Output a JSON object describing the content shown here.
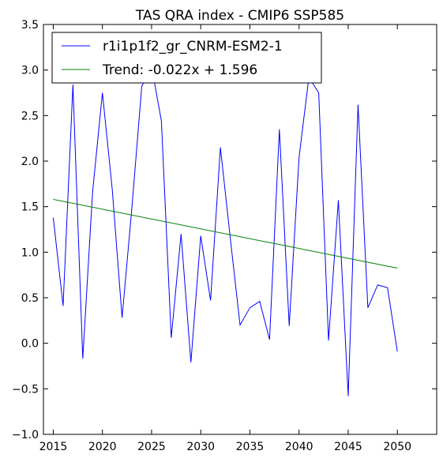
{
  "chart_data": {
    "type": "line",
    "title": "TAS QRA index - CMIP6 SSP585",
    "xlabel": "",
    "ylabel": "",
    "xlim": [
      2014,
      2054
    ],
    "ylim": [
      -1.0,
      3.5
    ],
    "xticks": [
      2015,
      2020,
      2025,
      2030,
      2035,
      2040,
      2045,
      2050
    ],
    "xtick_labels": [
      "2015",
      "2020",
      "2025",
      "2030",
      "2035",
      "2040",
      "2045",
      "2050"
    ],
    "yticks": [
      -1.0,
      -0.5,
      0.0,
      0.5,
      1.0,
      1.5,
      2.0,
      2.5,
      3.0,
      3.5
    ],
    "ytick_labels": [
      "−1.0",
      "−0.5",
      "0.0",
      "0.5",
      "1.0",
      "1.5",
      "2.0",
      "2.5",
      "3.0",
      "3.5"
    ],
    "grid": false,
    "legend_position": "top-left",
    "series": [
      {
        "name": "r1i1p1f2_gr_CNRM-ESM2-1",
        "color": "#0000ff",
        "x": [
          2015,
          2016,
          2017,
          2018,
          2019,
          2020,
          2021,
          2022,
          2023,
          2024,
          2025,
          2026,
          2027,
          2028,
          2029,
          2030,
          2031,
          2032,
          2033,
          2034,
          2035,
          2036,
          2037,
          2038,
          2039,
          2040,
          2041,
          2042,
          2043,
          2044,
          2045,
          2046,
          2047,
          2048,
          2049,
          2050
        ],
        "y": [
          1.38,
          0.41,
          2.84,
          -0.17,
          1.66,
          2.75,
          1.69,
          0.28,
          1.49,
          2.82,
          3.04,
          2.44,
          0.06,
          1.2,
          -0.21,
          1.18,
          0.47,
          2.15,
          1.16,
          0.2,
          0.39,
          0.46,
          0.04,
          2.35,
          0.19,
          2.04,
          2.92,
          2.75,
          0.03,
          1.57,
          -0.58,
          2.62,
          0.39,
          0.64,
          0.61,
          -0.09
        ]
      },
      {
        "name": "Trend: -0.022x + 1.596",
        "color": "#008000",
        "x": [
          2015,
          2050
        ],
        "y": [
          1.58,
          0.825
        ]
      }
    ]
  }
}
